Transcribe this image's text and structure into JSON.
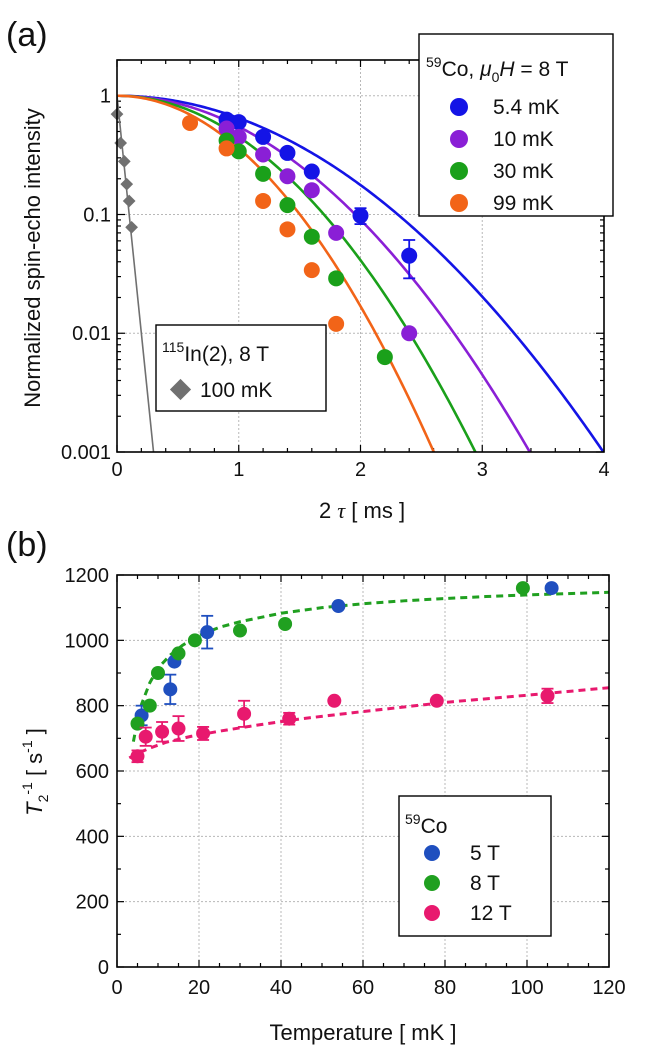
{
  "panel_a": {
    "label": "(a)",
    "legend": {
      "header": {
        "iso": "59",
        "el": "Co, ",
        "mu": "μ",
        "sub": "0",
        "h": "H",
        "rest": " = 8 T"
      },
      "entries": [
        "5.4 mK",
        "10 mK",
        "30 mK",
        "99 mK"
      ]
    },
    "inset_legend": {
      "header": {
        "iso": "115",
        "rest": "In(2), 8 T"
      },
      "entry": "100 mK"
    },
    "xaxis": {
      "label_pre": "2 ",
      "label_tau": "τ",
      "label_post": " [ ms ]"
    }
  },
  "panel_b": {
    "label": "(b)",
    "legend": {
      "header": {
        "iso": "59",
        "rest": "Co"
      },
      "entries": [
        "5 T",
        "8 T",
        "12 T"
      ]
    },
    "yaxis": {
      "t": "T",
      "sub": "2",
      "sup": "-1",
      "unit": " [ s",
      "unit_sup": "-1",
      "close": " ]"
    }
  },
  "chart_data": [
    {
      "type": "scatter",
      "title": "(a)",
      "xlabel": "2 τ [ ms ]",
      "ylabel": "Normalized spin-echo intensity",
      "xlim": [
        0,
        4
      ],
      "ylim": [
        0.001,
        2
      ],
      "yscale": "log",
      "xticks": [
        0,
        1,
        2,
        3,
        4
      ],
      "yticks": [
        0.001,
        0.01,
        0.1,
        1
      ],
      "ytick_labels": [
        "0.001",
        "0.01",
        "0.1",
        "1"
      ],
      "grid": true,
      "series": [
        {
          "name": "5.4 mK",
          "color": "#1414e6",
          "x": [
            0.9,
            1.0,
            1.2,
            1.4,
            1.6,
            2.0,
            2.4
          ],
          "y": [
            0.63,
            0.6,
            0.45,
            0.33,
            0.23,
            0.098,
            0.045
          ],
          "yerr": [
            0,
            0,
            0,
            0,
            0,
            0.015,
            0.016
          ],
          "fit_T2": 1.52
        },
        {
          "name": "10 mK",
          "color": "#8a1fd6",
          "x": [
            0.9,
            1.0,
            1.2,
            1.4,
            1.6,
            1.8,
            2.4
          ],
          "y": [
            0.53,
            0.45,
            0.32,
            0.21,
            0.16,
            0.07,
            0.01
          ],
          "fit_T2": 1.29
        },
        {
          "name": "30 mK",
          "color": "#1aa01a",
          "x": [
            0.9,
            1.0,
            1.2,
            1.4,
            1.6,
            1.8,
            2.2
          ],
          "y": [
            0.42,
            0.34,
            0.22,
            0.12,
            0.065,
            0.029,
            0.0063
          ],
          "fit_T2": 1.12
        },
        {
          "name": "99 mK",
          "color": "#f26418",
          "x": [
            0.6,
            0.9,
            1.2,
            1.4,
            1.6,
            1.8
          ],
          "y": [
            0.59,
            0.36,
            0.13,
            0.075,
            0.034,
            0.012
          ],
          "fit_T2": 0.99
        },
        {
          "name": "115In(2) 100 mK",
          "color": "#707070",
          "marker": "diamond",
          "x": [
            0.0,
            0.03,
            0.06,
            0.08,
            0.1,
            0.12
          ],
          "y": [
            0.7,
            0.4,
            0.28,
            0.18,
            0.13,
            0.078
          ],
          "fit_line": {
            "x": [
              0.0,
              0.3
            ],
            "y": [
              1.0,
              0.001
            ]
          }
        }
      ]
    },
    {
      "type": "scatter",
      "title": "(b)",
      "xlabel": "Temperature [ mK ]",
      "ylabel": "T2^-1 [ s^-1 ]",
      "xlim": [
        0,
        120
      ],
      "ylim": [
        0,
        1200
      ],
      "xticks": [
        0,
        20,
        40,
        60,
        80,
        100,
        120
      ],
      "yticks": [
        0,
        200,
        400,
        600,
        800,
        1000,
        1200
      ],
      "grid": true,
      "series": [
        {
          "name": "5 T",
          "color": "#1f4fbf",
          "x": [
            6,
            13,
            14,
            22,
            54,
            106
          ],
          "y": [
            770,
            850,
            935,
            1025,
            1105,
            1160
          ],
          "yerr": [
            30,
            45,
            0,
            50,
            0,
            0
          ]
        },
        {
          "name": "8 T",
          "color": "#20a020",
          "x": [
            5,
            8,
            10,
            15,
            19,
            30,
            41,
            99
          ],
          "y": [
            745,
            800,
            900,
            960,
            1000,
            1030,
            1050,
            1160
          ],
          "fit": {
            "x": [
              4,
              5,
              6,
              8,
              10,
              13,
              16,
              20,
              25,
              30,
              40,
              50,
              60,
              70,
              80,
              90,
              100,
              110,
              120
            ],
            "y": [
              690,
              755,
              805,
              870,
              915,
              955,
              985,
              1015,
              1040,
              1057,
              1083,
              1100,
              1112,
              1121,
              1128,
              1134,
              1139,
              1143,
              1147
            ]
          }
        },
        {
          "name": "12 T",
          "color": "#e8196e",
          "x": [
            5,
            7,
            11,
            15,
            21,
            31,
            42,
            53,
            78,
            105
          ],
          "y": [
            645,
            705,
            720,
            730,
            715,
            775,
            760,
            815,
            815,
            830
          ],
          "yerr": [
            18,
            28,
            30,
            38,
            20,
            40,
            18,
            0,
            0,
            22
          ],
          "fit": {
            "x": [
              3,
              5,
              8,
              12,
              18,
              25,
              35,
              45,
              60,
              80,
              100,
              120
            ],
            "y": [
              640,
              654,
              670,
              688,
              706,
              722,
              742,
              760,
              782,
              810,
              832,
              855
            ]
          }
        }
      ]
    }
  ]
}
